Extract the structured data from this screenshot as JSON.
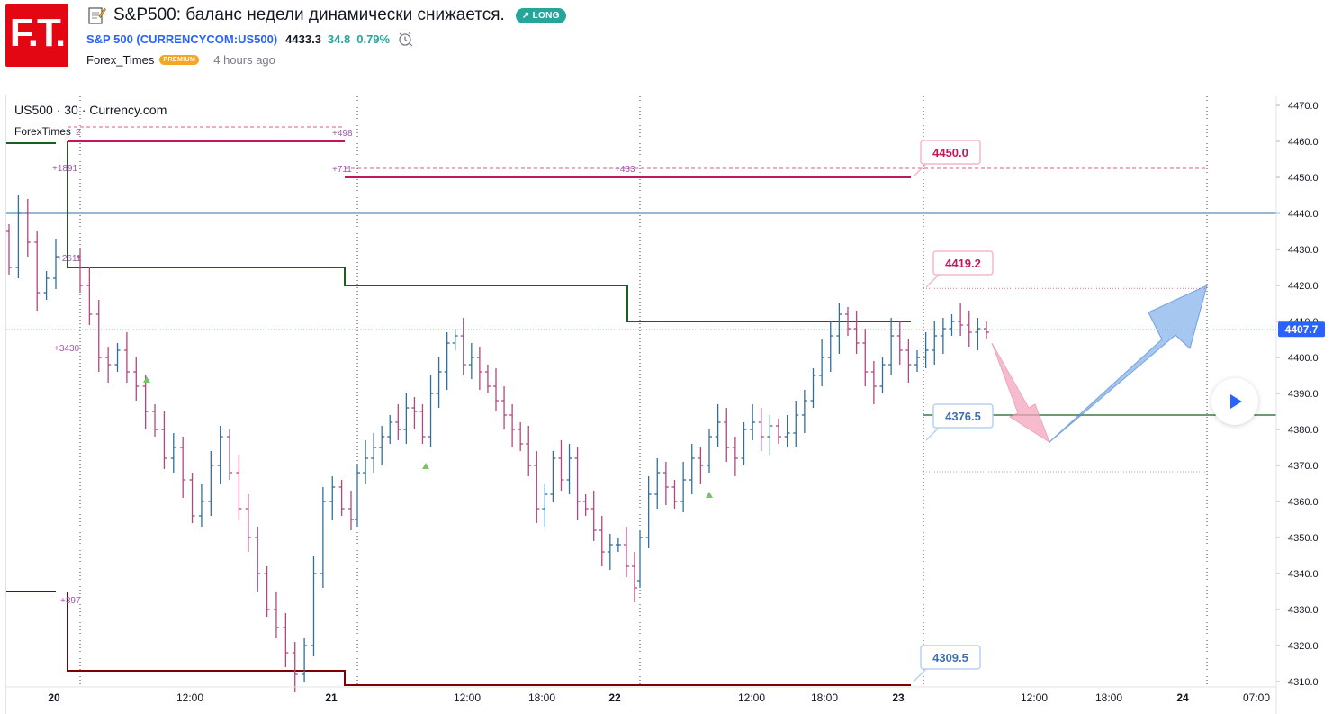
{
  "header": {
    "logo_text": "F.T.",
    "title": "S&P500: баланс недели динамически снижается.",
    "badge": "LONG",
    "symbol": "S&P 500 (CURRENCYCOM:US500)",
    "price": "4433.3",
    "change": "34.8",
    "change_pct": "0.79%",
    "author": "Forex_Times",
    "premium": "PREMIUM",
    "time_ago": "4 hours ago",
    "colors": {
      "brand": "#e30613",
      "long": "#26a69a",
      "link": "#2962ff",
      "premium": "#f5a623"
    }
  },
  "chart_data": {
    "type": "bar",
    "legend": "US500 · 30 · Currency.com",
    "indicator_legend": "ForexTimes",
    "y_ticks": [
      4310,
      4320,
      4330,
      4340,
      4350,
      4360,
      4370,
      4380,
      4390,
      4400,
      4410,
      4420,
      4430,
      4440,
      4450,
      4460,
      4470
    ],
    "ylim": [
      4308.5,
      4472.5
    ],
    "x_ticks": [
      "20",
      "12:00",
      "21",
      "12:00",
      "18:00",
      "22",
      "12:00",
      "18:00",
      "23",
      "12:00",
      "18:00",
      "24",
      "07:00"
    ],
    "current_price": "4407.7",
    "horizontal_line": 4440,
    "callouts": [
      "4450.0",
      "4419.2",
      "4376.5",
      "4309.5"
    ],
    "level_labels": [
      "+1891",
      "+498",
      "+711",
      "+433",
      "+2611",
      "+3430",
      "+397",
      "2"
    ],
    "projection": {
      "down_arrow": {
        "from": 4404,
        "to": 4376.5
      },
      "up_arrow": {
        "from": 4376.5,
        "to": 4420
      }
    },
    "levels": {
      "resistance": {
        "color": "#c2185b",
        "steps": [
          4460,
          4450
        ]
      },
      "pivot": {
        "color": "#1b5e20",
        "steps": [
          4460,
          4425,
          4420,
          4410,
          4384
        ]
      },
      "support": {
        "color": "#7f0000",
        "steps": [
          4335,
          4313,
          4309
        ]
      }
    },
    "bars_segments": [
      {
        "start": 4435,
        "values": [
          4425,
          4440,
          4432,
          4418,
          4422,
          4428
        ]
      },
      {
        "start": 4428,
        "values": [
          4420,
          4412,
          4400,
          4398,
          4402,
          4396,
          4392,
          4385,
          4380,
          4372,
          4375,
          4366,
          4356,
          4360,
          4370,
          4378,
          4368,
          4358,
          4350,
          4340,
          4330,
          4325,
          4318,
          4312,
          4320,
          4340,
          4360,
          4364,
          4358,
          4355
        ]
      },
      {
        "start": 4355,
        "values": [
          4368,
          4372,
          4375,
          4378,
          4382,
          4380,
          4386,
          4385,
          4378,
          4390,
          4396,
          4404,
          4406,
          4398,
          4400,
          4396,
          4392,
          4388,
          4384,
          4380,
          4376,
          4370,
          4358,
          4362,
          4372,
          4366,
          4372,
          4360,
          4358,
          4352,
          4346,
          4348,
          4348,
          4342,
          4336
        ]
      },
      {
        "start": 4338,
        "values": [
          4350,
          4362,
          4368,
          4364,
          4360,
          4366,
          4372,
          4370,
          4378,
          4382,
          4375,
          4372,
          4380,
          4382,
          4378,
          4381,
          4378,
          4379,
          4384,
          4388,
          4395,
          4400,
          4406,
          4412,
          4408,
          4404,
          4396,
          4392,
          4398,
          4406,
          4402,
          4398,
          4400,
          4402,
          4406,
          4408,
          4410,
          4409,
          4407,
          4408,
          4407
        ]
      }
    ],
    "signals_up": [
      4397,
      4373,
      4365
    ]
  }
}
